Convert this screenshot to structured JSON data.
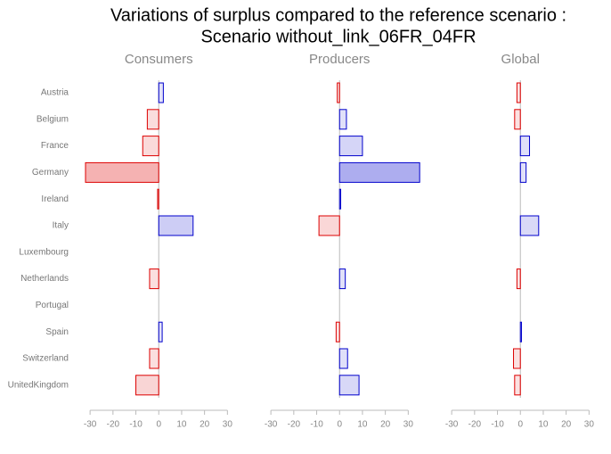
{
  "chart_data": {
    "type": "bar",
    "orientation": "horizontal",
    "title": [
      "Variations of surplus compared to the reference scenario :",
      "Scenario without_link_06FR_04FR"
    ],
    "categories": [
      "Austria",
      "Belgium",
      "France",
      "Germany",
      "Ireland",
      "Italy",
      "Luxembourg",
      "Netherlands",
      "Portugal",
      "Spain",
      "Switzerland",
      "UnitedKingdom"
    ],
    "series": [
      {
        "name": "Consumers",
        "values": [
          2,
          -5,
          -7,
          -32,
          -0.5,
          15,
          0,
          -4,
          0,
          1.5,
          -4,
          -10
        ]
      },
      {
        "name": "Producers",
        "values": [
          -1,
          3,
          10,
          35,
          0.5,
          -9,
          0,
          2.5,
          0,
          -1.5,
          3.5,
          8.5
        ]
      },
      {
        "name": "Global",
        "values": [
          -1.5,
          -2.5,
          4,
          2.5,
          0,
          8,
          0,
          -1.5,
          0,
          0.5,
          -3,
          -2.5
        ]
      }
    ],
    "positive_color": "#0000cc",
    "negative_color": "#dd0000",
    "xlim": [
      -32,
      35
    ],
    "xticks": [
      -30,
      -20,
      -10,
      0,
      10,
      20,
      30
    ]
  }
}
